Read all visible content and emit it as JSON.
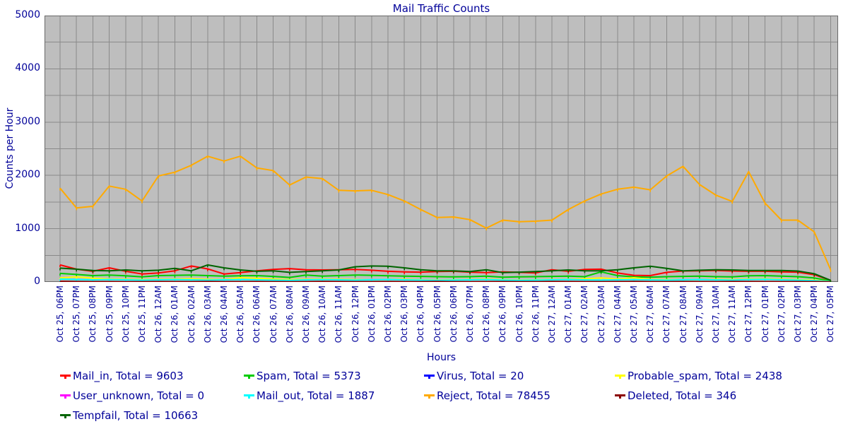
{
  "title": "Mail Traffic Counts",
  "y_axis_label": "Counts per Hour",
  "x_axis_label": "Hours",
  "legend_label_format": "{name}, Total = {total}",
  "colors": {
    "text": "#000099",
    "plot_background": "#bebebe",
    "gridline": "#8a8a8a",
    "plot_border": "#696969"
  },
  "chart_data": {
    "type": "line",
    "title": "Mail Traffic Counts",
    "xlabel": "Hours",
    "ylabel": "Counts per Hour",
    "ylim": [
      0,
      5000
    ],
    "yticks": [
      0,
      1000,
      2000,
      3000,
      4000,
      5000
    ],
    "grid_step": 500,
    "legend_position": "bottom",
    "x": [
      "Oct 25, 06PM",
      "Oct 25, 07PM",
      "Oct 25, 08PM",
      "Oct 25, 09PM",
      "Oct 25, 10PM",
      "Oct 25, 11PM",
      "Oct 26, 12AM",
      "Oct 26, 01AM",
      "Oct 26, 02AM",
      "Oct 26, 03AM",
      "Oct 26, 04AM",
      "Oct 26, 05AM",
      "Oct 26, 06AM",
      "Oct 26, 07AM",
      "Oct 26, 08AM",
      "Oct 26, 09AM",
      "Oct 26, 10AM",
      "Oct 26, 11AM",
      "Oct 26, 12PM",
      "Oct 26, 01PM",
      "Oct 26, 02PM",
      "Oct 26, 03PM",
      "Oct 26, 04PM",
      "Oct 26, 05PM",
      "Oct 26, 06PM",
      "Oct 26, 07PM",
      "Oct 26, 08PM",
      "Oct 26, 09PM",
      "Oct 26, 10PM",
      "Oct 26, 11PM",
      "Oct 27, 12AM",
      "Oct 27, 01AM",
      "Oct 27, 02AM",
      "Oct 27, 03AM",
      "Oct 27, 04AM",
      "Oct 27, 05AM",
      "Oct 27, 06AM",
      "Oct 27, 07AM",
      "Oct 27, 08AM",
      "Oct 27, 09AM",
      "Oct 27, 10AM",
      "Oct 27, 11AM",
      "Oct 27, 12PM",
      "Oct 27, 01PM",
      "Oct 27, 02PM",
      "Oct 27, 03PM",
      "Oct 27, 04PM",
      "Oct 27, 05PM"
    ],
    "series": [
      {
        "name": "Mail_in",
        "total": 9603,
        "color": "#ff0000",
        "values": [
          320,
          240,
          200,
          265,
          200,
          150,
          170,
          210,
          300,
          245,
          150,
          175,
          210,
          235,
          250,
          230,
          225,
          230,
          235,
          220,
          200,
          190,
          185,
          195,
          200,
          185,
          175,
          190,
          180,
          170,
          230,
          200,
          235,
          240,
          170,
          125,
          120,
          180,
          205,
          210,
          215,
          205,
          200,
          200,
          190,
          185,
          135,
          30
        ]
      },
      {
        "name": "Spam",
        "total": 5373,
        "color": "#00cc00",
        "values": [
          160,
          140,
          120,
          130,
          115,
          95,
          120,
          125,
          130,
          120,
          110,
          115,
          120,
          105,
          85,
          130,
          110,
          120,
          130,
          125,
          115,
          110,
          105,
          100,
          95,
          100,
          110,
          90,
          95,
          100,
          105,
          110,
          100,
          190,
          120,
          95,
          90,
          100,
          105,
          110,
          100,
          95,
          115,
          120,
          110,
          100,
          75,
          20
        ]
      },
      {
        "name": "Virus",
        "total": 20,
        "color": "#0000ff",
        "values": [
          0,
          0,
          1,
          0,
          0,
          0,
          2,
          0,
          0,
          1,
          0,
          0,
          0,
          1,
          0,
          0,
          2,
          0,
          0,
          0,
          1,
          0,
          0,
          0,
          0,
          1,
          0,
          0,
          2,
          0,
          0,
          0,
          1,
          0,
          0,
          0,
          2,
          0,
          0,
          1,
          0,
          0,
          1,
          0,
          2,
          0,
          1,
          1
        ]
      },
      {
        "name": "Probable_spam",
        "total": 2438,
        "color": "#ffff00",
        "values": [
          75,
          95,
          70,
          55,
          50,
          45,
          50,
          55,
          60,
          50,
          45,
          80,
          70,
          55,
          45,
          50,
          55,
          50,
          45,
          40,
          45,
          50,
          40,
          35,
          40,
          45,
          55,
          40,
          35,
          40,
          45,
          50,
          60,
          75,
          55,
          80,
          50,
          45,
          40,
          45,
          50,
          45,
          55,
          60,
          50,
          45,
          35,
          10
        ]
      },
      {
        "name": "User_unknown",
        "total": 0,
        "color": "#ff00ff",
        "values": [
          0,
          0,
          0,
          0,
          0,
          0,
          0,
          0,
          0,
          0,
          0,
          0,
          0,
          0,
          0,
          0,
          0,
          0,
          0,
          0,
          0,
          0,
          0,
          0,
          0,
          0,
          0,
          0,
          0,
          0,
          0,
          0,
          0,
          0,
          0,
          0,
          0,
          0,
          0,
          0,
          0,
          0,
          0,
          0,
          0,
          0,
          0,
          0
        ]
      },
      {
        "name": "Mail_out",
        "total": 1887,
        "color": "#00ffff",
        "values": [
          55,
          45,
          40,
          45,
          40,
          35,
          40,
          45,
          40,
          35,
          40,
          45,
          40,
          35,
          30,
          40,
          45,
          40,
          35,
          40,
          45,
          40,
          35,
          30,
          35,
          40,
          45,
          35,
          30,
          35,
          40,
          45,
          40,
          35,
          40,
          45,
          40,
          35,
          40,
          45,
          40,
          35,
          45,
          50,
          40,
          35,
          25,
          10
        ]
      },
      {
        "name": "Reject",
        "total": 78455,
        "color": "#ffaa00",
        "values": [
          1760,
          1390,
          1420,
          1800,
          1740,
          1520,
          1990,
          2060,
          2190,
          2360,
          2270,
          2360,
          2140,
          2090,
          1820,
          1970,
          1940,
          1720,
          1710,
          1720,
          1640,
          1520,
          1360,
          1210,
          1220,
          1170,
          1010,
          1160,
          1130,
          1140,
          1160,
          1360,
          1520,
          1650,
          1740,
          1780,
          1730,
          1990,
          2170,
          1830,
          1630,
          1510,
          2070,
          1480,
          1160,
          1160,
          940,
          230
        ]
      },
      {
        "name": "Deleted",
        "total": 346,
        "color": "#8b0000",
        "values": [
          12,
          8,
          6,
          7,
          5,
          6,
          8,
          7,
          6,
          9,
          7,
          6,
          8,
          7,
          5,
          6,
          9,
          8,
          6,
          7,
          8,
          6,
          7,
          9,
          6,
          5,
          7,
          8,
          6,
          7,
          9,
          8,
          6,
          7,
          8,
          9,
          7,
          6,
          8,
          7,
          6,
          9,
          8,
          7,
          6,
          8,
          6,
          3
        ]
      },
      {
        "name": "Tempfail",
        "total": 10663,
        "color": "#006400",
        "values": [
          260,
          240,
          215,
          210,
          225,
          210,
          220,
          255,
          210,
          320,
          265,
          225,
          200,
          210,
          180,
          195,
          210,
          225,
          285,
          300,
          295,
          265,
          230,
          210,
          210,
          195,
          230,
          175,
          185,
          195,
          210,
          225,
          210,
          210,
          230,
          265,
          295,
          255,
          210,
          220,
          230,
          225,
          215,
          215,
          215,
          205,
          155,
          30
        ]
      }
    ]
  }
}
